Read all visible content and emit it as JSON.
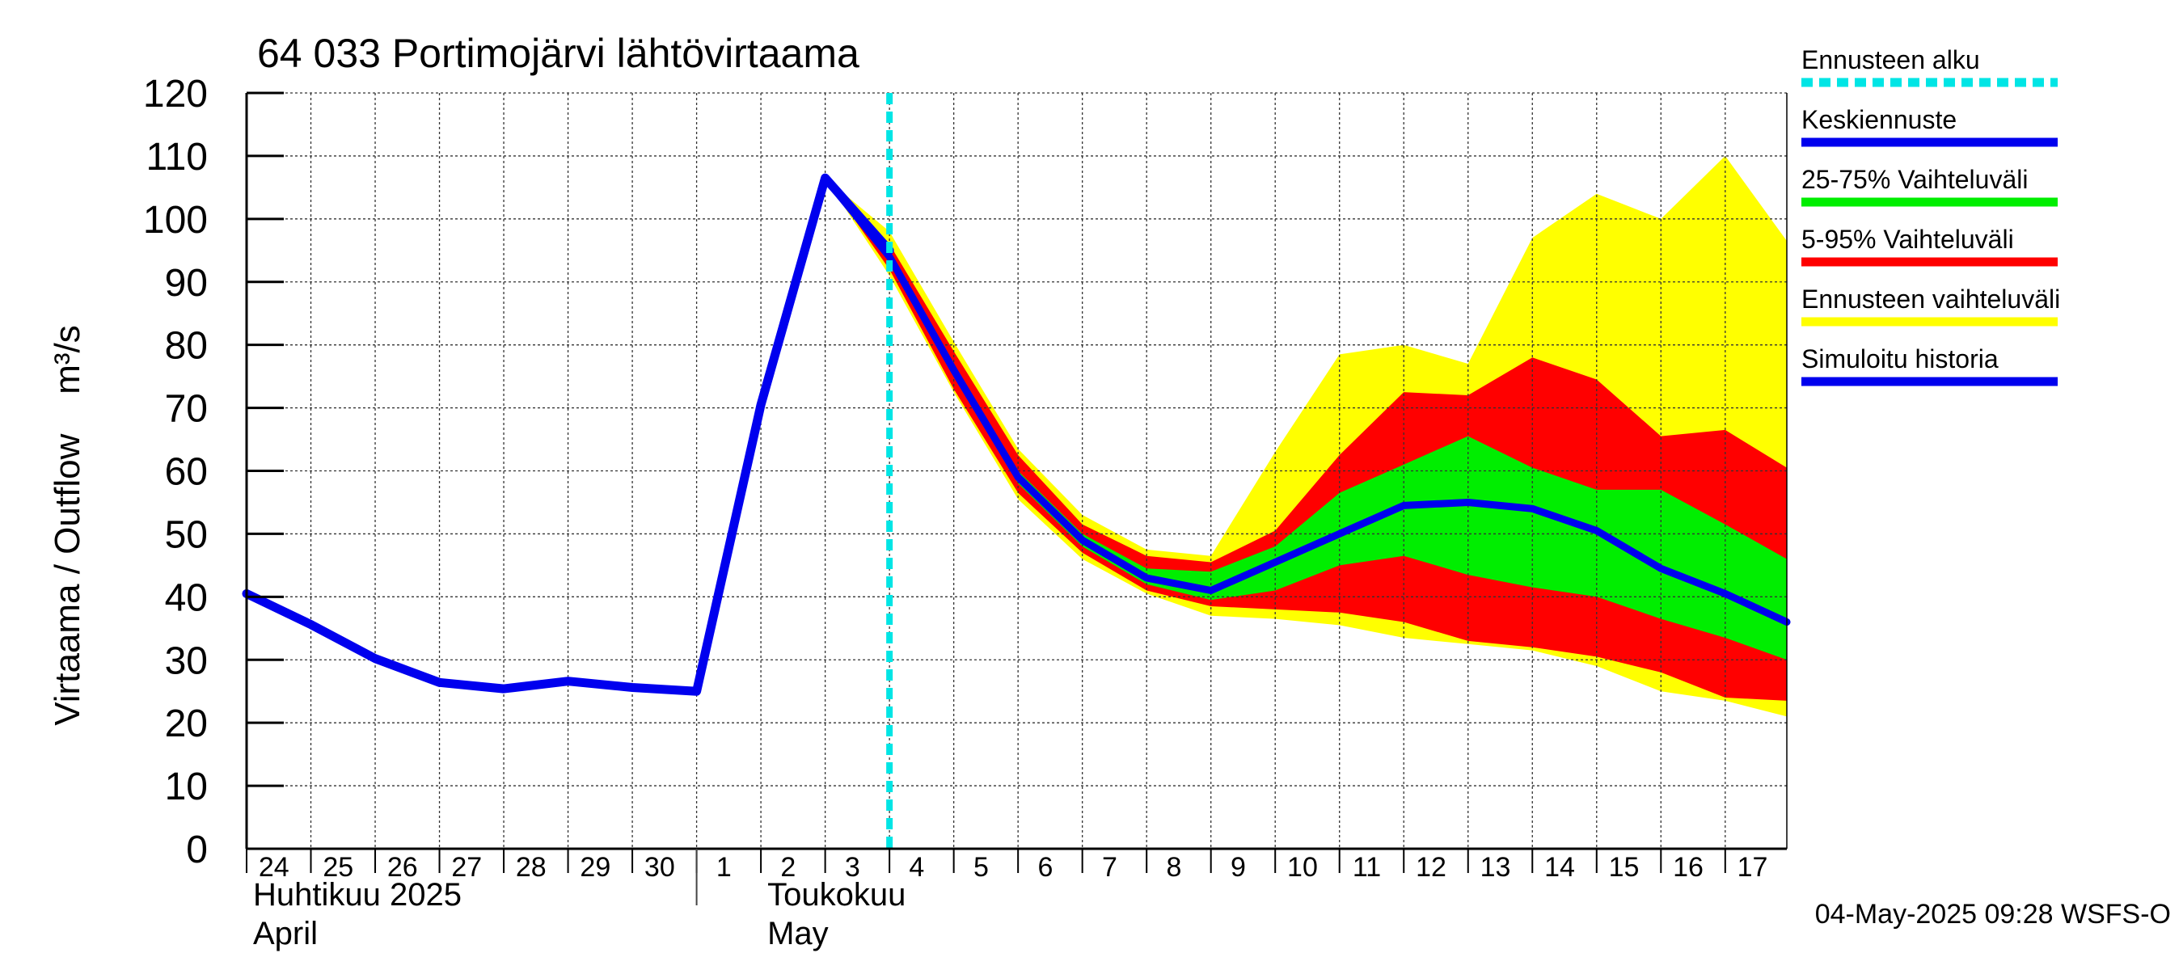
{
  "chart_data": {
    "type": "area",
    "title": "64 033 Portimojärvi lähtövirtaama",
    "ylabel": "Virtaama / Outflow    m³/s",
    "xlabel": "",
    "ylim": [
      0,
      120
    ],
    "xlim": [
      "2025-04-24",
      "2025-05-17T23:00"
    ],
    "yticks": [
      0,
      10,
      20,
      30,
      40,
      50,
      60,
      70,
      80,
      90,
      100,
      110,
      120
    ],
    "xtick_labels": [
      "24",
      "25",
      "26",
      "27",
      "28",
      "29",
      "30",
      "1",
      "2",
      "3",
      "4",
      "5",
      "6",
      "7",
      "8",
      "9",
      "10",
      "11",
      "12",
      "13",
      "14",
      "15",
      "16",
      "17"
    ],
    "month_labels": [
      {
        "date": "2025-04-24",
        "fi": "Huhtikuu  2025",
        "en": "April"
      },
      {
        "date": "2025-05-02",
        "fi": "Toukokuu",
        "en": "May"
      }
    ],
    "grid": true,
    "legend_position": "right",
    "forecast_start": "2025-05-04T00:00",
    "legend": [
      {
        "label": "Ennusteen alku",
        "color": "#00e5e5",
        "style": "dashed"
      },
      {
        "label": "Keskiennuste",
        "color": "#0000ee",
        "style": "line"
      },
      {
        "label": "25-75% Vaihteluväli",
        "color": "#00ee00",
        "style": "band"
      },
      {
        "label": "5-95% Vaihteluväli",
        "color": "#ff0000",
        "style": "band"
      },
      {
        "label": "Ennusteen vaihteluväli",
        "color": "#ffff00",
        "style": "band"
      },
      {
        "label": "Simuloitu historia",
        "color": "#0000ee",
        "style": "line"
      }
    ],
    "history": {
      "name": "Simuloitu historia",
      "x": [
        "2025-04-24T00:00",
        "2025-04-25T00:00",
        "2025-04-26T00:00",
        "2025-04-27T00:00",
        "2025-04-28T00:00",
        "2025-04-29T00:00",
        "2025-04-30T00:00",
        "2025-05-01T00:00",
        "2025-05-02T00:00",
        "2025-05-03T00:00",
        "2025-05-04T00:00"
      ],
      "y": [
        40.5,
        35.6,
        30.2,
        26.4,
        25.4,
        26.6,
        25.6,
        25.0,
        70.5,
        106.5,
        95.0
      ]
    },
    "forecast_x": [
      "2025-05-03T00:00",
      "2025-05-04T00:00",
      "2025-05-05T00:00",
      "2025-05-06T00:00",
      "2025-05-07T00:00",
      "2025-05-08T00:00",
      "2025-05-09T00:00",
      "2025-05-10T00:00",
      "2025-05-11T00:00",
      "2025-05-12T00:00",
      "2025-05-13T00:00",
      "2025-05-14T00:00",
      "2025-05-15T00:00",
      "2025-05-16T00:00",
      "2025-05-17T00:00",
      "2025-05-17T23:00"
    ],
    "median": [
      106.5,
      94.0,
      76.0,
      59.0,
      49.0,
      43.0,
      41.0,
      45.5,
      50.0,
      54.5,
      55.0,
      54.0,
      50.5,
      44.5,
      40.5,
      36.0
    ],
    "band_25_75": {
      "low": [
        106.5,
        94.0,
        75.0,
        58.0,
        48.0,
        42.0,
        39.5,
        41.0,
        45.0,
        46.5,
        43.5,
        41.5,
        40.0,
        36.5,
        33.5,
        30.0
      ],
      "high": [
        106.5,
        95.0,
        77.0,
        60.0,
        50.0,
        44.5,
        44.0,
        48.0,
        56.5,
        61.0,
        65.5,
        60.5,
        57.0,
        57.0,
        51.5,
        46.0
      ]
    },
    "band_5_95": {
      "low": [
        106.5,
        92.0,
        73.0,
        56.5,
        47.0,
        41.0,
        38.5,
        38.0,
        37.5,
        36.0,
        33.0,
        32.0,
        30.5,
        28.0,
        24.0,
        23.5
      ],
      "high": [
        106.5,
        96.0,
        79.0,
        62.5,
        51.5,
        46.5,
        45.5,
        50.5,
        62.5,
        72.5,
        72.0,
        78.0,
        74.5,
        65.5,
        66.5,
        60.5
      ]
    },
    "band_total": {
      "low": [
        106.5,
        91.0,
        72.5,
        55.5,
        46.0,
        40.5,
        37.0,
        36.5,
        35.5,
        33.5,
        32.5,
        31.5,
        29.0,
        25.0,
        23.5,
        21.0
      ],
      "high": [
        106.5,
        98.0,
        80.5,
        63.5,
        53.0,
        47.5,
        46.5,
        63.0,
        78.5,
        80.0,
        77.0,
        97.0,
        104.0,
        100.0,
        110.0,
        96.5
      ]
    },
    "footer": "04-May-2025 09:28 WSFS-O"
  }
}
